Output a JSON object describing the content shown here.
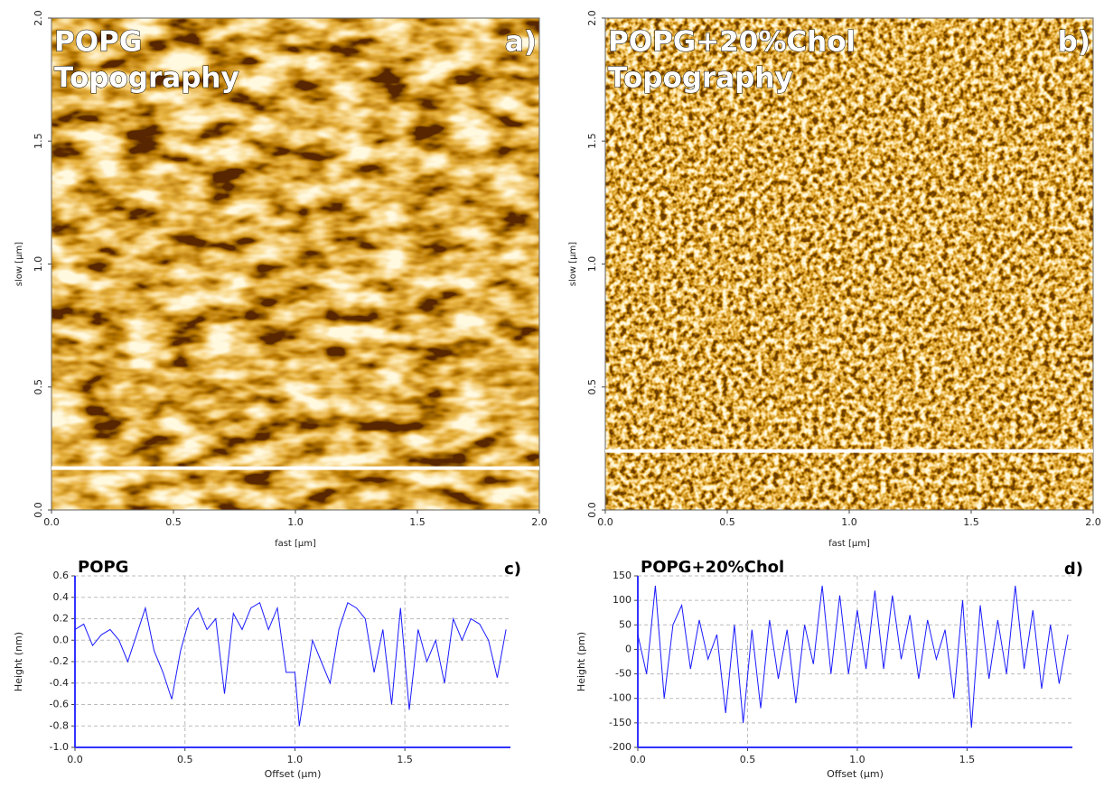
{
  "chart_data": [
    {
      "type": "image",
      "title": "POPG",
      "subtitle": "Topography",
      "panel_label": "a)",
      "x_label": "fast [µm]",
      "y_label": "slow [µm]",
      "xlim": [
        0,
        2.0
      ],
      "ylim": [
        0,
        2.0
      ],
      "xticks": [
        {
          "value": 0,
          "label": "0.0"
        },
        0.5,
        {
          "value": 1,
          "label": "1.0"
        },
        1.5,
        {
          "value": 2,
          "label": "2.0"
        }
      ],
      "yticks": [
        {
          "value": 0,
          "label": "0.0"
        },
        0.5,
        {
          "value": 1,
          "label": "1.0"
        },
        1.5,
        {
          "value": 2,
          "label": "2.0"
        }
      ],
      "profile_y": 0.17
    },
    {
      "type": "image",
      "title": "POPG+20%Chol",
      "subtitle": "Topography",
      "panel_label": "b)",
      "x_label": "fast [µm]",
      "y_label": "slow [µm]",
      "xlim": [
        0,
        2.0
      ],
      "ylim": [
        0,
        2.0
      ],
      "xticks": [
        {
          "value": 0,
          "label": "0.0"
        },
        0.5,
        {
          "value": 1,
          "label": "1.0"
        },
        1.5,
        {
          "value": 2,
          "label": "2.0"
        }
      ],
      "yticks": [
        {
          "value": 0,
          "label": "0.0"
        },
        0.5,
        {
          "value": 1,
          "label": "1.0"
        },
        1.5,
        {
          "value": 2,
          "label": "2.0"
        }
      ],
      "profile_y": 0.24
    },
    {
      "type": "line",
      "title": "POPG",
      "panel_label": "c)",
      "x_label": "Offset (µm)",
      "y_label": "Height (nm)",
      "color": "#1a1aff",
      "grid": true,
      "xlim": [
        0,
        1.98
      ],
      "ylim": [
        -1.0,
        0.6
      ],
      "xticks": [
        {
          "value": 0,
          "label": "0.0"
        },
        0.5,
        {
          "value": 1,
          "label": "1.0"
        },
        1.5
      ],
      "yticks": [
        {
          "value": -1.0,
          "label": "-1.0"
        },
        -0.8,
        -0.6,
        -0.4,
        -0.2,
        {
          "value": 0,
          "label": "0.0"
        },
        0.2,
        0.4,
        0.6
      ],
      "x": [
        0,
        0.04,
        0.08,
        0.12,
        0.16,
        0.2,
        0.24,
        0.28,
        0.32,
        0.36,
        0.4,
        0.44,
        0.48,
        0.52,
        0.56,
        0.6,
        0.64,
        0.68,
        0.72,
        0.76,
        0.8,
        0.84,
        0.88,
        0.92,
        0.96,
        1.0,
        1.02,
        1.08,
        1.12,
        1.16,
        1.2,
        1.24,
        1.28,
        1.32,
        1.36,
        1.4,
        1.44,
        1.48,
        1.52,
        1.56,
        1.6,
        1.64,
        1.68,
        1.72,
        1.76,
        1.8,
        1.84,
        1.88,
        1.92,
        1.96
      ],
      "values": [
        0.1,
        0.15,
        -0.05,
        0.05,
        0.1,
        0.0,
        -0.2,
        0.05,
        0.3,
        -0.1,
        -0.3,
        -0.55,
        -0.1,
        0.2,
        0.3,
        0.1,
        0.2,
        -0.5,
        0.25,
        0.1,
        0.3,
        0.35,
        0.1,
        0.3,
        -0.3,
        -0.3,
        -0.8,
        0.0,
        -0.2,
        -0.4,
        0.1,
        0.35,
        0.3,
        0.2,
        -0.3,
        0.1,
        -0.6,
        0.3,
        -0.65,
        0.1,
        -0.2,
        0.0,
        -0.4,
        0.2,
        0.0,
        0.2,
        0.15,
        0.0,
        -0.35,
        0.1
      ]
    },
    {
      "type": "line",
      "title": "POPG+20%Chol",
      "panel_label": "d)",
      "x_label": "Offset (µm)",
      "y_label": "Height (pm)",
      "color": "#1a1aff",
      "grid": true,
      "xlim": [
        0,
        1.98
      ],
      "ylim": [
        -200,
        150
      ],
      "xticks": [
        {
          "value": 0,
          "label": "0.0"
        },
        0.5,
        {
          "value": 1,
          "label": "1.0"
        },
        1.5
      ],
      "yticks": [
        -200,
        -150,
        -100,
        -50,
        0,
        50,
        100,
        150
      ],
      "x": [
        0,
        0.04,
        0.08,
        0.12,
        0.16,
        0.2,
        0.24,
        0.28,
        0.32,
        0.36,
        0.4,
        0.44,
        0.48,
        0.52,
        0.56,
        0.6,
        0.64,
        0.68,
        0.72,
        0.76,
        0.8,
        0.84,
        0.88,
        0.92,
        0.96,
        1.0,
        1.04,
        1.08,
        1.12,
        1.16,
        1.2,
        1.24,
        1.28,
        1.32,
        1.36,
        1.4,
        1.44,
        1.48,
        1.52,
        1.56,
        1.6,
        1.64,
        1.68,
        1.72,
        1.76,
        1.8,
        1.84,
        1.88,
        1.92,
        1.96
      ],
      "values": [
        30,
        -50,
        130,
        -100,
        50,
        90,
        -40,
        60,
        -20,
        30,
        -130,
        50,
        -150,
        40,
        -120,
        60,
        -60,
        40,
        -110,
        50,
        -30,
        130,
        -50,
        110,
        -50,
        80,
        -40,
        120,
        -40,
        110,
        -20,
        70,
        -60,
        60,
        -20,
        40,
        -100,
        100,
        -160,
        90,
        -60,
        60,
        -50,
        130,
        -40,
        80,
        -80,
        50,
        -70,
        30
      ]
    }
  ]
}
